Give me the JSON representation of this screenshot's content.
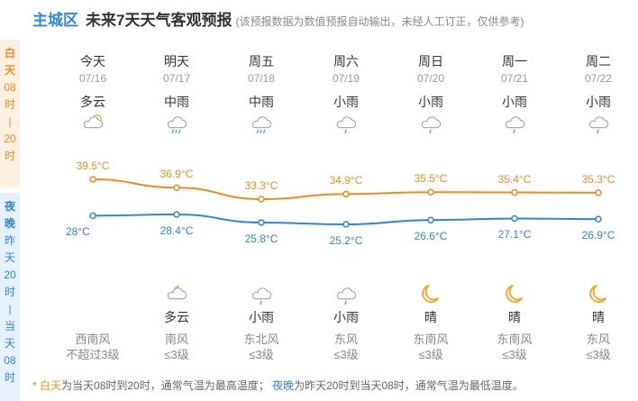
{
  "header": {
    "district": "主城区",
    "main_title": "未来7天天气客观预报",
    "note": "(该预报数据为数值预报自动输出，未经人工订正，仅供参考)"
  },
  "side": {
    "day_chars": [
      "白",
      "天",
      "08",
      "时",
      "|",
      "20",
      "时"
    ],
    "night_chars": [
      "夜",
      "晚",
      "昨",
      "天",
      "20",
      "时",
      "|",
      "当",
      "天",
      "08",
      "时"
    ]
  },
  "days": [
    {
      "name": "今天",
      "date": "07/16",
      "day_wx": "多云",
      "day_icon": "partly-cloudy-icon",
      "night_wx": "",
      "night_icon": "",
      "wind_dir": "西南风",
      "wind_lv": "不超过3级"
    },
    {
      "name": "明天",
      "date": "07/17",
      "day_wx": "中雨",
      "day_icon": "moderate-rain-icon",
      "night_wx": "多云",
      "night_icon": "partly-cloudy-night-icon",
      "wind_dir": "南风",
      "wind_lv": "≤3级"
    },
    {
      "name": "周五",
      "date": "07/18",
      "day_wx": "中雨",
      "day_icon": "moderate-rain-icon",
      "night_wx": "小雨",
      "night_icon": "light-rain-icon",
      "wind_dir": "东北风",
      "wind_lv": "≤3级"
    },
    {
      "name": "周六",
      "date": "07/19",
      "day_wx": "小雨",
      "day_icon": "light-rain-icon",
      "night_wx": "小雨",
      "night_icon": "light-rain-icon",
      "wind_dir": "东风",
      "wind_lv": "≤3级"
    },
    {
      "name": "周日",
      "date": "07/20",
      "day_wx": "小雨",
      "day_icon": "light-rain-icon",
      "night_wx": "晴",
      "night_icon": "moon-icon",
      "wind_dir": "东南风",
      "wind_lv": "≤3级"
    },
    {
      "name": "周一",
      "date": "07/21",
      "day_wx": "小雨",
      "day_icon": "light-rain-icon",
      "night_wx": "晴",
      "night_icon": "moon-icon",
      "wind_dir": "东南风",
      "wind_lv": "≤3级"
    },
    {
      "name": "周二",
      "date": "07/22",
      "day_wx": "小雨",
      "day_icon": "light-rain-icon",
      "night_wx": "晴",
      "night_icon": "moon-icon",
      "wind_dir": "东风",
      "wind_lv": "≤3级"
    }
  ],
  "chart_data": {
    "type": "line",
    "categories": [
      "07/16",
      "07/17",
      "07/18",
      "07/19",
      "07/20",
      "07/21",
      "07/22"
    ],
    "series": [
      {
        "values": [
          39.5,
          36.9,
          33.3,
          34.9,
          35.5,
          35.4,
          35.3
        ],
        "labels": [
          "39.5°C",
          "36.9°C",
          "33.3°C",
          "34.9°C",
          "35.5°C",
          "35.4°C",
          "35.3°C"
        ],
        "color": "#f28b1f"
      },
      {
        "values": [
          28,
          28.4,
          25.8,
          25.2,
          26.6,
          27.1,
          26.9
        ],
        "labels": [
          "28°C",
          "28.4°C",
          "25.8°C",
          "25.2°C",
          "26.6°C",
          "27.1°C",
          "26.9°C"
        ],
        "color": "#2e86de"
      }
    ]
  },
  "footer": {
    "star": "*",
    "day_word": "白天",
    "day_text": "为当天08时到20时，通常气温为最高温度；",
    "night_word": "夜晚",
    "night_text": "为昨天20时到当天08时，通常气温为最低温度。"
  },
  "colors": {
    "accent": "#2e86de",
    "day": "#f28b1f",
    "icon_gray": "#aaaaaa",
    "rain": "#3cb0e8",
    "moon": "#f5a623"
  }
}
